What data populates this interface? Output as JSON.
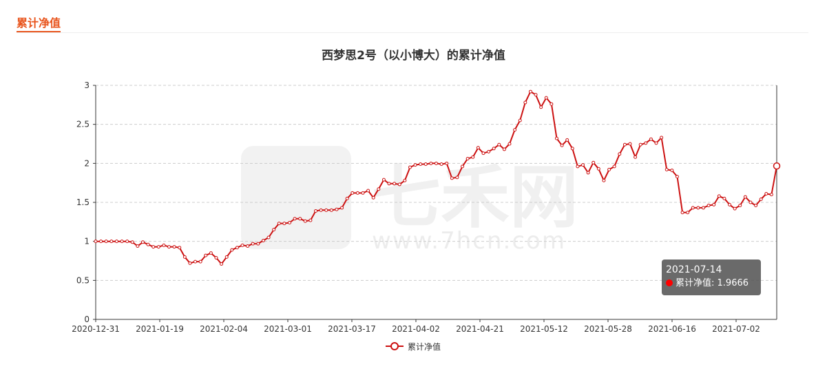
{
  "section": {
    "title": "累计净值"
  },
  "tooltip": {
    "date": "2021-07-14",
    "label": "累计净值",
    "value": "1.9666"
  },
  "watermark": {
    "brand": "七禾网",
    "url": "www.7hcn.com"
  },
  "colors": {
    "series": "#cc1010",
    "accent": "#e8541c",
    "tooltip_dot": "#ff0000"
  },
  "chart_data": {
    "type": "line",
    "title": "西梦思2号（以小博大）的累计净值",
    "xlabel": "",
    "ylabel": "",
    "ylim": [
      0,
      3
    ],
    "yticks": [
      "0",
      "0.5",
      "1",
      "1.5",
      "2",
      "2.5",
      "3"
    ],
    "xticks": [
      "2020-12-31",
      "2021-01-19",
      "2021-02-04",
      "2021-03-01",
      "2021-03-17",
      "2021-04-02",
      "2021-04-21",
      "2021-05-12",
      "2021-05-28",
      "2021-06-16",
      "2021-07-02"
    ],
    "grid": true,
    "legend": "bottom-center",
    "series": [
      {
        "name": "累计净值",
        "values": [
          1.0,
          1.0,
          1.0,
          1.0,
          1.0,
          1.0,
          1.0,
          0.99,
          0.94,
          0.99,
          0.96,
          0.93,
          0.93,
          0.95,
          0.93,
          0.93,
          0.92,
          0.8,
          0.72,
          0.74,
          0.74,
          0.82,
          0.85,
          0.79,
          0.71,
          0.8,
          0.89,
          0.92,
          0.95,
          0.94,
          0.97,
          0.97,
          1.01,
          1.05,
          1.15,
          1.23,
          1.23,
          1.24,
          1.29,
          1.29,
          1.26,
          1.27,
          1.39,
          1.4,
          1.4,
          1.4,
          1.41,
          1.43,
          1.55,
          1.62,
          1.62,
          1.62,
          1.65,
          1.56,
          1.67,
          1.79,
          1.74,
          1.74,
          1.73,
          1.78,
          1.95,
          1.98,
          1.99,
          1.99,
          2.0,
          2.0,
          1.99,
          2.0,
          1.81,
          1.82,
          1.96,
          2.06,
          2.08,
          2.2,
          2.13,
          2.15,
          2.19,
          2.24,
          2.18,
          2.25,
          2.43,
          2.55,
          2.78,
          2.92,
          2.88,
          2.72,
          2.84,
          2.76,
          2.32,
          2.23,
          2.3,
          2.19,
          1.96,
          1.98,
          1.88,
          2.01,
          1.93,
          1.78,
          1.92,
          1.96,
          2.12,
          2.24,
          2.25,
          2.08,
          2.24,
          2.26,
          2.31,
          2.26,
          2.33,
          1.92,
          1.91,
          1.83,
          1.37,
          1.37,
          1.43,
          1.43,
          1.43,
          1.46,
          1.47,
          1.58,
          1.55,
          1.47,
          1.42,
          1.46,
          1.57,
          1.5,
          1.46,
          1.54,
          1.61,
          1.6,
          1.9666
        ]
      }
    ]
  }
}
